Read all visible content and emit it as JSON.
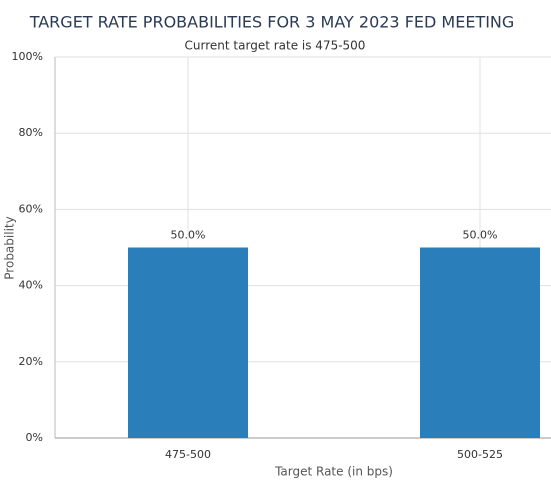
{
  "chart_data": {
    "type": "bar",
    "title": "TARGET RATE PROBABILITIES FOR 3 MAY 2023 FED MEETING",
    "subtitle": "Current target rate is 475-500",
    "x_label": "Target Rate (in bps)",
    "y_label": "Probability",
    "categories": [
      "475-500",
      "500-525"
    ],
    "values": [
      50,
      50
    ],
    "value_labels": [
      "50.0%",
      "50.0%"
    ],
    "color": "#2a7fba",
    "ylim": [
      0,
      100
    ],
    "yticks": [
      {
        "value": 0,
        "label": "0%"
      },
      {
        "value": 20,
        "label": "20%"
      },
      {
        "value": 40,
        "label": "40%"
      },
      {
        "value": 60,
        "label": "60%"
      },
      {
        "value": 80,
        "label": "80%"
      },
      {
        "value": 100,
        "label": "100%"
      }
    ],
    "grid": true
  }
}
